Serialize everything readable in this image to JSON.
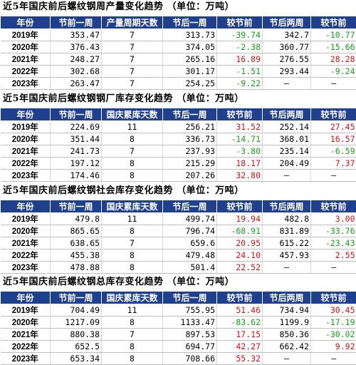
{
  "colors": {
    "header_bg": "#1f3f8f",
    "negative": "#17a317",
    "positive": "#e01010"
  },
  "sections": [
    {
      "title": "近5年国庆前后螺纹钢周产量变化趋势 （单位：万吨）",
      "headers": [
        "年份",
        "节前一周",
        "产量周期天数",
        "节后一周",
        "较节前",
        "节后两周",
        "较节前"
      ],
      "rows": [
        {
          "year": "2019年",
          "before": "353.47",
          "days": "7",
          "after1": "313.73",
          "chg1": "-39.74",
          "after2": "342.7",
          "chg2": "-10.77"
        },
        {
          "year": "2020年",
          "before": "376.43",
          "days": "7",
          "after1": "374.05",
          "chg1": "-2.38",
          "after2": "360.77",
          "chg2": "-15.66"
        },
        {
          "year": "2021年",
          "before": "248.27",
          "days": "7",
          "after1": "265.16",
          "chg1": "16.89",
          "after2": "276.55",
          "chg2": "28.28"
        },
        {
          "year": "2022年",
          "before": "302.68",
          "days": "7",
          "after1": "301.17",
          "chg1": "-1.51",
          "after2": "293.44",
          "chg2": "-9.24"
        },
        {
          "year": "2023年",
          "before": "263.47",
          "days": "7",
          "after1": "254.25",
          "chg1": "-9.22",
          "after2": "–",
          "chg2": "–"
        }
      ]
    },
    {
      "title": "近5年国庆前后螺纹钢钢厂库存变化趋势 （单位：万吨）",
      "headers": [
        "年份",
        "节前一周",
        "国庆累库天数",
        "节后一周",
        "较节前",
        "节后两周",
        "较节前"
      ],
      "rows": [
        {
          "year": "2019年",
          "before": "224.69",
          "days": "11",
          "after1": "256.21",
          "chg1": "31.52",
          "after2": "252.14",
          "chg2": "27.45"
        },
        {
          "year": "2020年",
          "before": "351.44",
          "days": "8",
          "after1": "336.73",
          "chg1": "-14.71",
          "after2": "368.01",
          "chg2": "16.57"
        },
        {
          "year": "2021年",
          "before": "241.73",
          "days": "7",
          "after1": "237.93",
          "chg1": "-3.80",
          "after2": "235.14",
          "chg2": "-6.59"
        },
        {
          "year": "2022年",
          "before": "197.12",
          "days": "8",
          "after1": "215.29",
          "chg1": "18.17",
          "after2": "204.49",
          "chg2": "7.37"
        },
        {
          "year": "2023年",
          "before": "174.46",
          "days": "8",
          "after1": "207.26",
          "chg1": "32.80",
          "after2": "–",
          "chg2": "–"
        }
      ]
    },
    {
      "title": "近5年国庆前后螺纹钢社会库存变化趋势 （单位：万吨）",
      "headers": [
        "年份",
        "节前一周",
        "国庆累库天数",
        "节后一周",
        "较节前",
        "节后两周",
        "较节前"
      ],
      "rows": [
        {
          "year": "2019年",
          "before": "479.8",
          "days": "11",
          "after1": "499.74",
          "chg1": "19.94",
          "after2": "482.8",
          "chg2": "3.00"
        },
        {
          "year": "2020年",
          "before": "865.65",
          "days": "8",
          "after1": "796.74",
          "chg1": "-68.91",
          "after2": "831.89",
          "chg2": "-33.76"
        },
        {
          "year": "2021年",
          "before": "638.65",
          "days": "7",
          "after1": "659.6",
          "chg1": "20.95",
          "after2": "615.22",
          "chg2": "-23.43"
        },
        {
          "year": "2022年",
          "before": "455.38",
          "days": "8",
          "after1": "479.48",
          "chg1": "24.10",
          "after2": "457.93",
          "chg2": "2.55"
        },
        {
          "year": "2023年",
          "before": "478.88",
          "days": "8",
          "after1": "501.4",
          "chg1": "22.52",
          "after2": "–",
          "chg2": "–"
        }
      ]
    },
    {
      "title": "近5年国庆前后螺纹钢总库存变化趋势 （单位：万吨）",
      "headers": [
        "年份",
        "节前一周",
        "国庆累库天数",
        "节后一周",
        "较节前",
        "节后两周",
        "较节前"
      ],
      "rows": [
        {
          "year": "2019年",
          "before": "704.49",
          "days": "11",
          "after1": "755.95",
          "chg1": "51.46",
          "after2": "734.94",
          "chg2": "30.45"
        },
        {
          "year": "2020年",
          "before": "1217.09",
          "days": "8",
          "after1": "1133.47",
          "chg1": "-83.62",
          "after2": "1199.9",
          "chg2": "-17.19"
        },
        {
          "year": "2021年",
          "before": "880.38",
          "days": "7",
          "after1": "897.53",
          "chg1": "17.15",
          "after2": "850.36",
          "chg2": "-30.02"
        },
        {
          "year": "2022年",
          "before": "652.5",
          "days": "8",
          "after1": "694.77",
          "chg1": "42.27",
          "after2": "662.42",
          "chg2": "9.92"
        },
        {
          "year": "2023年",
          "before": "653.34",
          "days": "8",
          "after1": "708.66",
          "chg1": "55.32",
          "after2": "–",
          "chg2": "–"
        }
      ]
    }
  ]
}
